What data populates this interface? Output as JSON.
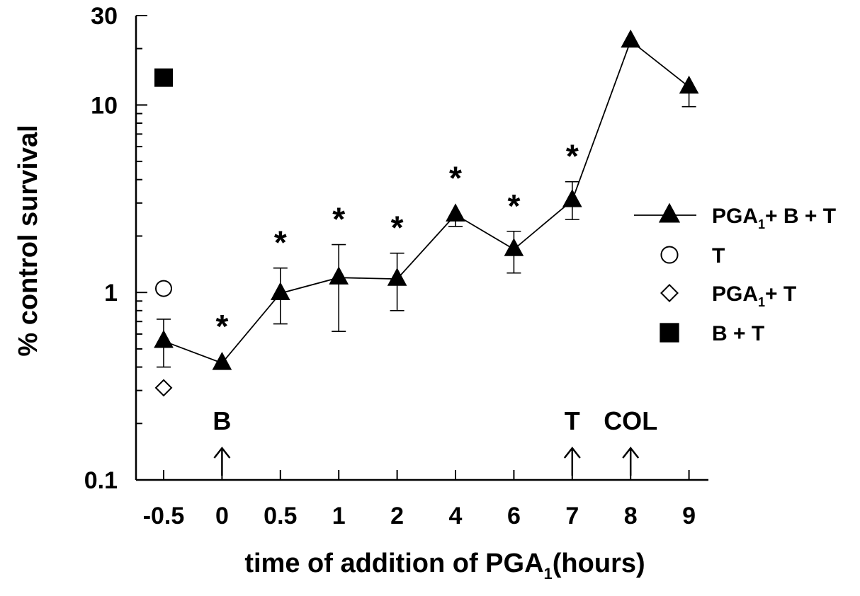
{
  "chart_data": {
    "type": "line",
    "ylabel": "% control survival",
    "xlabel_main": "time of addition of PGA",
    "xlabel_sub": "1",
    "xlabel_tail": "(hours)",
    "y_scale": "log",
    "ylim": [
      0.1,
      30
    ],
    "y_tick_labels": [
      "0.1",
      "1",
      "10",
      "30"
    ],
    "y_tick_values": [
      0.1,
      1,
      10,
      30
    ],
    "categories": [
      "-0.5",
      "0",
      "0.5",
      "1",
      "2",
      "4",
      "6",
      "7",
      "8",
      "9"
    ],
    "grid": false,
    "legend_position": "right",
    "series": [
      {
        "name": "PGA1 + B + T",
        "legend_parts": [
          "PGA",
          "1",
          "+ B + T"
        ],
        "marker": "filled-triangle",
        "connected": true,
        "values": [
          0.55,
          0.42,
          0.99,
          1.2,
          1.18,
          2.6,
          1.7,
          3.1,
          22,
          12.5
        ],
        "error_low": [
          0.4,
          null,
          0.68,
          0.62,
          0.8,
          2.25,
          1.27,
          2.45,
          null,
          9.8
        ],
        "error_high": [
          0.72,
          null,
          1.35,
          1.8,
          1.62,
          null,
          2.12,
          3.9,
          null,
          null
        ],
        "significant": [
          false,
          true,
          true,
          true,
          true,
          true,
          true,
          true,
          false,
          false
        ]
      },
      {
        "name": "T",
        "legend_parts": [
          "T",
          "",
          ""
        ],
        "marker": "open-circle",
        "connected": false,
        "x": [
          "-0.5"
        ],
        "values": [
          1.05
        ]
      },
      {
        "name": "PGA1 + T",
        "legend_parts": [
          "PGA",
          "1",
          "+ T"
        ],
        "marker": "open-diamond",
        "connected": false,
        "x": [
          "-0.5"
        ],
        "values": [
          0.31
        ]
      },
      {
        "name": "B + T",
        "legend_parts": [
          "B + T",
          "",
          ""
        ],
        "marker": "filled-square",
        "connected": false,
        "x": [
          "-0.5"
        ],
        "values": [
          14
        ]
      }
    ],
    "annotations": [
      {
        "label": "B",
        "x": "0",
        "arrow": true
      },
      {
        "label": "T",
        "x": "7",
        "arrow": true
      },
      {
        "label": "COL",
        "x": "8",
        "arrow": true
      }
    ],
    "significance_symbol": "*"
  },
  "colors": {
    "ink": "#000000",
    "background": "#ffffff"
  }
}
